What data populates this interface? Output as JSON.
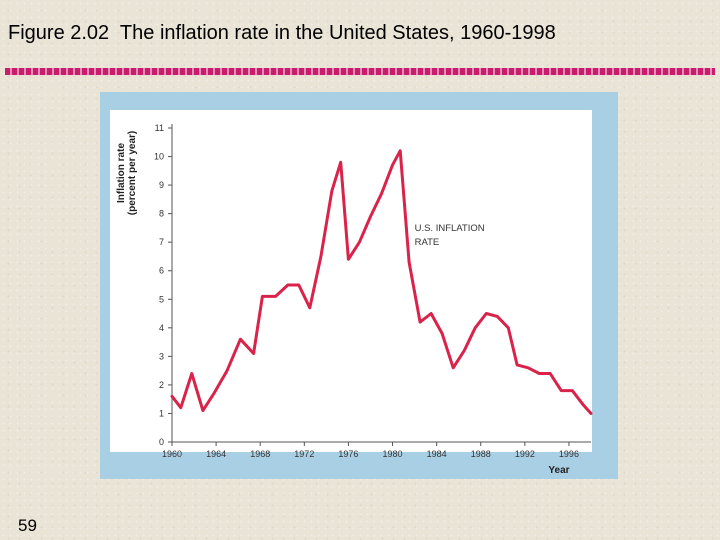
{
  "slide": {
    "title": "Figure 2.02  The inflation rate in the United States, 1960-1998",
    "page_number": "59"
  },
  "colors": {
    "background": "#e9e4d6",
    "rule": "#c81d6e",
    "panel": "#a8cfe3",
    "plot_area": "#ffffff",
    "line": "#d9234a"
  },
  "chart_data": {
    "type": "line",
    "title": "",
    "ylabel": "Inflation rate (percent per year)",
    "xlabel": "Year",
    "xlim": [
      1960,
      1998
    ],
    "ylim": [
      0,
      11
    ],
    "x_ticks": [
      1960,
      1964,
      1968,
      1972,
      1976,
      1980,
      1984,
      1988,
      1992,
      1996
    ],
    "x_tick_labels": [
      "1960",
      "1964",
      "1968",
      "1972",
      "1976",
      "1980",
      "1984",
      "1988",
      "1992",
      "1996"
    ],
    "y_ticks": [
      0,
      1,
      2,
      3,
      4,
      5,
      6,
      7,
      8,
      9,
      10,
      11
    ],
    "y_tick_labels": [
      "0",
      "1",
      "2",
      "3",
      "4",
      "5",
      "6",
      "7",
      "8",
      "9",
      "10",
      "11"
    ],
    "grid": false,
    "series": [
      {
        "name": "U.S. INFLATION RATE",
        "color": "#d9234a",
        "x": [
          1960,
          1960.8,
          1961.8,
          1962.8,
          1963.8,
          1965,
          1966.2,
          1967.4,
          1968.2,
          1969.4,
          1970.5,
          1971.5,
          1972.5,
          1973.5,
          1974.5,
          1975.3,
          1976,
          1977,
          1978,
          1979,
          1980,
          1980.7,
          1981.5,
          1982.5,
          1983.5,
          1984.5,
          1985.5,
          1986.5,
          1987.5,
          1988.5,
          1989.5,
          1990.5,
          1991.3,
          1992.3,
          1993.3,
          1994.3,
          1995.3,
          1996.3,
          1997.3,
          1998
        ],
        "y": [
          1.6,
          1.2,
          2.4,
          1.1,
          1.7,
          2.5,
          3.6,
          3.1,
          5.1,
          5.1,
          5.5,
          5.5,
          4.7,
          6.5,
          8.8,
          9.8,
          6.4,
          7.0,
          7.9,
          8.7,
          9.7,
          10.2,
          6.3,
          4.2,
          4.5,
          3.8,
          2.6,
          3.2,
          4.0,
          4.5,
          4.4,
          4.0,
          2.7,
          2.6,
          2.4,
          2.4,
          1.8,
          1.8,
          1.3,
          1.0
        ]
      }
    ],
    "annotations": [
      {
        "text": "U.S. INFLATION",
        "x": 1982,
        "y": 7.4
      },
      {
        "text": "RATE",
        "x": 1982,
        "y": 6.9
      }
    ]
  }
}
